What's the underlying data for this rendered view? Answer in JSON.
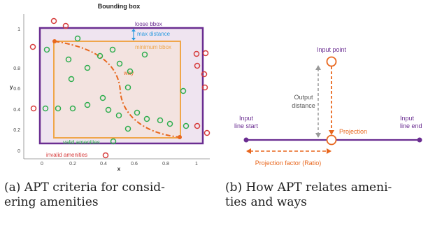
{
  "panel_a": {
    "title": "Bounding box",
    "xlabel": "x",
    "ylabel": "y",
    "x_ticks": [
      "0",
      "0.2",
      "0.4",
      "0.6",
      "0.8",
      "1"
    ],
    "y_ticks": [
      "0",
      "0.2",
      "0.4",
      "0.6",
      "0.8",
      "1"
    ],
    "labels": {
      "loose_bbox": "loose bbox",
      "max_distance": "max distance",
      "minimum_bbox": "minimum bbox",
      "way": "way",
      "valid_amenities": "valid amenities",
      "invalid_amenities": "invalid amenities"
    },
    "colors": {
      "loose_bbox": "#6a2d91",
      "loose_fill": "#efe4f0",
      "minimum_bbox": "#f0a64a",
      "way": "#e8671e",
      "valid": "#2fae4f",
      "invalid": "#d63b3b",
      "max_distance": "#2a9be0"
    }
  },
  "panel_b": {
    "input_point": "Input point",
    "output_distance_1": "Output",
    "output_distance_2": "distance",
    "input_line_start_1": "Input",
    "input_line_start_2": "line start",
    "input_line_end_1": "Input",
    "input_line_end_2": "line end",
    "projection": "Projection",
    "projection_factor": "Projection factor (Ratio)",
    "colors": {
      "line": "#6a2d91",
      "orange": "#e8671e",
      "distance": "#999999"
    }
  },
  "captions": {
    "a_line1": "(a) APT criteria for consid-",
    "a_line2": "ering amenities",
    "b_line1": "(b) How APT relates ameni-",
    "b_line2": "ties and ways"
  }
}
